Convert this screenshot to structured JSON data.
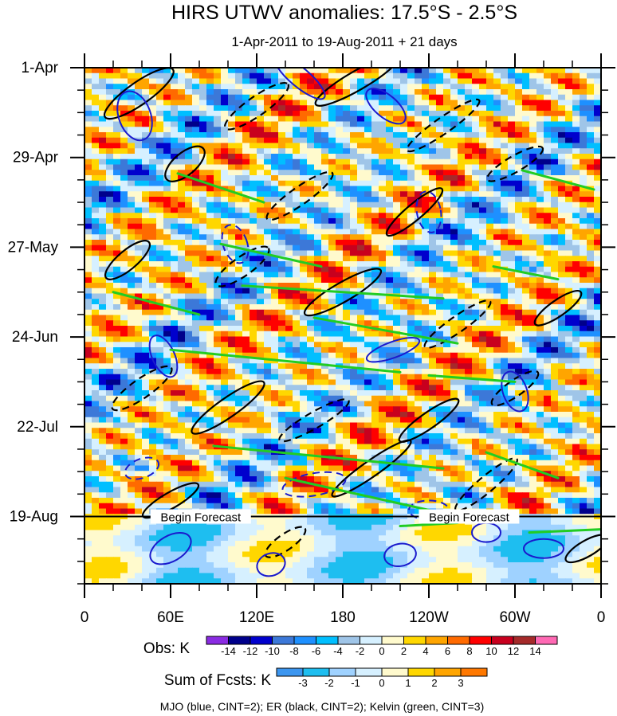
{
  "chart_data": {
    "type": "heatmap",
    "title": "HIRS UTWV anomalies: 17.5°S - 2.5°S",
    "subtitle": "1-Apr-2011 to 19-Aug-2011 + 21 days",
    "x_ticks": [
      "0",
      "60E",
      "120E",
      "180",
      "120W",
      "60W",
      "0"
    ],
    "x_range_deg": [
      0,
      360
    ],
    "y_ticks": [
      "1-Apr",
      "29-Apr",
      "27-May",
      "24-Jun",
      "22-Jul",
      "19-Aug"
    ],
    "y_range_days": [
      0,
      161
    ],
    "forecast_start_day": 140,
    "forecast_label": "Begin Forecast",
    "obs_legend": {
      "label": "Obs: K",
      "levels": [
        "-14",
        "-12",
        "-10",
        "-8",
        "-6",
        "-4",
        "-2",
        "0",
        "2",
        "4",
        "6",
        "8",
        "10",
        "12",
        "14"
      ],
      "colors": [
        "#8a2be2",
        "#00008b",
        "#0000cd",
        "#3c78d8",
        "#1e90ff",
        "#00bfff",
        "#9fc5e8",
        "#d6f0ff",
        "#fffacd",
        "#ffd700",
        "#ffa500",
        "#ff6a00",
        "#ff0000",
        "#c8001e",
        "#a52a2a",
        "#ff69b4"
      ]
    },
    "fcst_legend": {
      "label": "Sum of Fcsts: K",
      "levels": [
        "-3",
        "-2",
        "-1",
        "0",
        "1",
        "2",
        "3"
      ],
      "colors": [
        "#3c96f0",
        "#1ebef0",
        "#9fd2ff",
        "#d6f0ff",
        "#fffacd",
        "#ffd700",
        "#ffa500",
        "#ff7800"
      ]
    },
    "footer": "MJO (blue, CINT=2); ER (black, CINT=2); Kelvin (green, CINT=3)",
    "series": [
      {
        "name": "MJO",
        "color": "#1a1acd",
        "cint": 2
      },
      {
        "name": "ER",
        "color": "#000000",
        "cint": 2
      },
      {
        "name": "Kelvin",
        "color": "#22cc22",
        "cint": 3
      }
    ]
  }
}
